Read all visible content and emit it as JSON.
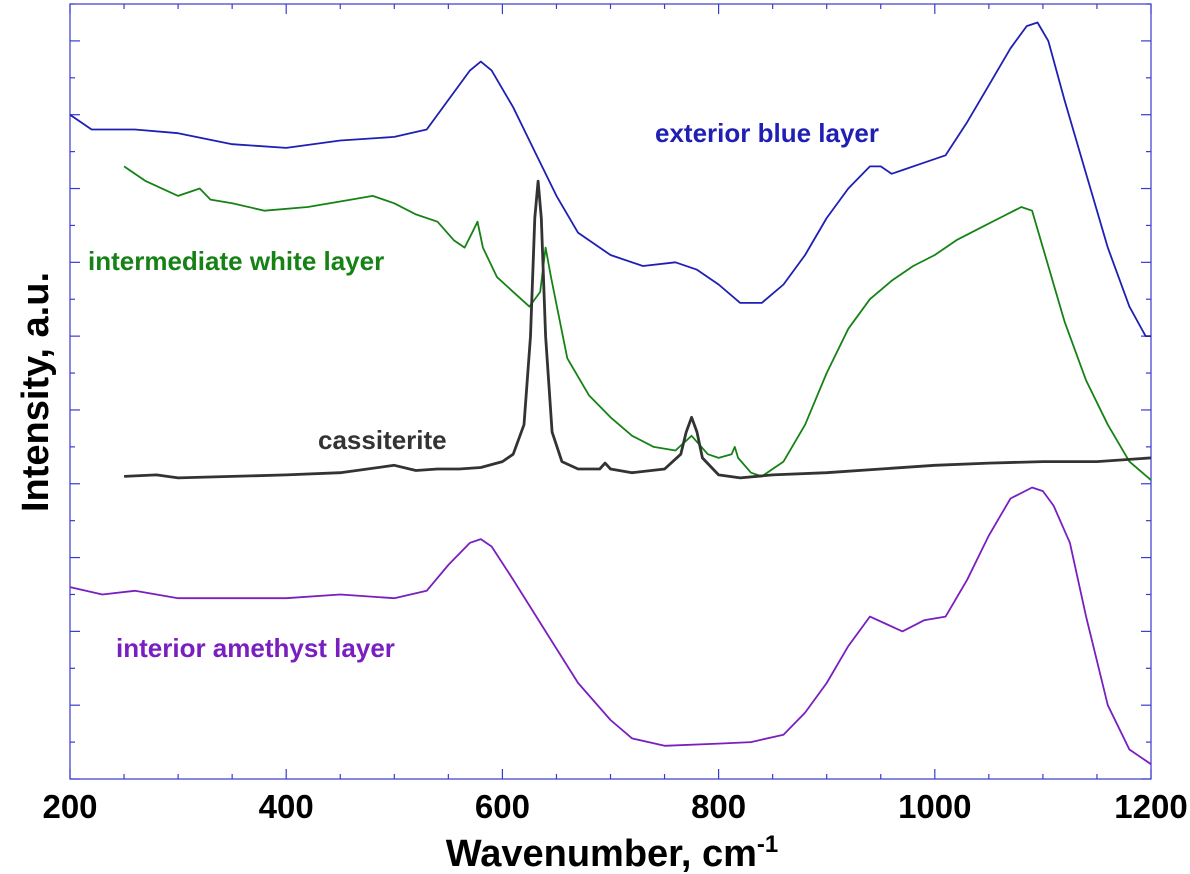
{
  "chart_data": {
    "type": "line",
    "title": "",
    "xlabel": "Wavenumber, cm",
    "xlabel_superscript": "-1",
    "ylabel": "Intensity, a.u.",
    "xlim": [
      200,
      1200
    ],
    "x_ticks": [
      200,
      400,
      600,
      800,
      1000,
      1200
    ],
    "x_tick_labels": [
      "200",
      "400",
      "600",
      "800",
      "1000",
      "1200"
    ],
    "y_tick_labels_shown": false,
    "ylim": [
      0,
      10.5
    ],
    "grid": false,
    "legend": "inline labels",
    "series": [
      {
        "name": "exterior blue layer",
        "color": "#1f1fb4",
        "x": [
          200,
          220,
          260,
          300,
          350,
          400,
          450,
          500,
          530,
          550,
          570,
          580,
          590,
          610,
          630,
          650,
          670,
          700,
          730,
          760,
          780,
          800,
          820,
          840,
          860,
          880,
          900,
          920,
          940,
          950,
          960,
          970,
          990,
          1010,
          1030,
          1050,
          1070,
          1085,
          1095,
          1105,
          1120,
          1140,
          1160,
          1180,
          1195,
          1200
        ],
        "y": [
          9.0,
          8.8,
          8.8,
          8.75,
          8.6,
          8.55,
          8.65,
          8.7,
          8.8,
          9.2,
          9.6,
          9.72,
          9.6,
          9.1,
          8.5,
          7.9,
          7.4,
          7.1,
          6.95,
          7.0,
          6.9,
          6.7,
          6.45,
          6.45,
          6.7,
          7.1,
          7.6,
          8.0,
          8.3,
          8.3,
          8.2,
          8.25,
          8.35,
          8.45,
          8.9,
          9.4,
          9.9,
          10.2,
          10.25,
          10.0,
          9.2,
          8.2,
          7.2,
          6.4,
          6.0,
          6.0
        ]
      },
      {
        "name": "intermediate white layer",
        "color": "#168216",
        "x": [
          250,
          270,
          300,
          320,
          330,
          350,
          380,
          420,
          460,
          480,
          500,
          520,
          540,
          555,
          565,
          572,
          577,
          582,
          595,
          610,
          625,
          635,
          640,
          645,
          660,
          680,
          700,
          720,
          740,
          760,
          775,
          790,
          800,
          812,
          815,
          818,
          830,
          840,
          860,
          880,
          900,
          920,
          940,
          960,
          980,
          1000,
          1020,
          1040,
          1060,
          1080,
          1090,
          1100,
          1120,
          1140,
          1160,
          1180,
          1200
        ],
        "y": [
          8.3,
          8.1,
          7.9,
          8.0,
          7.85,
          7.8,
          7.7,
          7.75,
          7.85,
          7.9,
          7.8,
          7.65,
          7.55,
          7.3,
          7.2,
          7.4,
          7.55,
          7.2,
          6.8,
          6.6,
          6.4,
          6.6,
          7.2,
          6.8,
          5.7,
          5.2,
          4.9,
          4.65,
          4.5,
          4.45,
          4.65,
          4.4,
          4.35,
          4.4,
          4.5,
          4.35,
          4.15,
          4.1,
          4.3,
          4.8,
          5.5,
          6.1,
          6.5,
          6.75,
          6.95,
          7.1,
          7.3,
          7.45,
          7.6,
          7.75,
          7.7,
          7.2,
          6.2,
          5.4,
          4.8,
          4.3,
          4.05
        ]
      },
      {
        "name": "cassiterite",
        "color": "#333333",
        "x": [
          250,
          280,
          300,
          350,
          400,
          450,
          500,
          520,
          540,
          560,
          580,
          600,
          610,
          620,
          626,
          630,
          633,
          636,
          640,
          646,
          655,
          670,
          690,
          695,
          700,
          720,
          750,
          765,
          770,
          775,
          780,
          785,
          800,
          820,
          850,
          900,
          950,
          1000,
          1050,
          1100,
          1150,
          1200
        ],
        "y": [
          4.1,
          4.12,
          4.08,
          4.1,
          4.12,
          4.15,
          4.25,
          4.18,
          4.2,
          4.2,
          4.22,
          4.3,
          4.4,
          4.8,
          6.0,
          7.6,
          8.1,
          7.6,
          6.0,
          4.7,
          4.3,
          4.2,
          4.2,
          4.28,
          4.2,
          4.15,
          4.2,
          4.4,
          4.7,
          4.9,
          4.7,
          4.35,
          4.12,
          4.08,
          4.12,
          4.15,
          4.2,
          4.25,
          4.28,
          4.3,
          4.3,
          4.35
        ]
      },
      {
        "name": "interior amethyst layer",
        "color": "#7a1fbf",
        "x": [
          200,
          230,
          260,
          300,
          350,
          400,
          450,
          500,
          530,
          550,
          570,
          580,
          590,
          610,
          640,
          670,
          700,
          720,
          750,
          800,
          830,
          860,
          880,
          900,
          920,
          940,
          955,
          970,
          990,
          1010,
          1030,
          1050,
          1070,
          1090,
          1100,
          1110,
          1125,
          1140,
          1160,
          1180,
          1200
        ],
        "y": [
          2.6,
          2.5,
          2.55,
          2.45,
          2.45,
          2.45,
          2.5,
          2.45,
          2.55,
          2.9,
          3.2,
          3.25,
          3.15,
          2.7,
          2.0,
          1.3,
          0.8,
          0.55,
          0.45,
          0.48,
          0.5,
          0.6,
          0.9,
          1.3,
          1.8,
          2.2,
          2.1,
          2.0,
          2.15,
          2.2,
          2.7,
          3.3,
          3.8,
          3.95,
          3.9,
          3.7,
          3.2,
          2.2,
          1.0,
          0.4,
          0.2
        ]
      }
    ],
    "annotations": [
      {
        "text": "exterior blue layer",
        "series": "exterior blue layer"
      },
      {
        "text": "intermediate white layer",
        "series": "intermediate white layer"
      },
      {
        "text": "cassiterite",
        "series": "cassiterite"
      },
      {
        "text": "interior amethyst layer",
        "series": "interior amethyst layer"
      }
    ]
  }
}
